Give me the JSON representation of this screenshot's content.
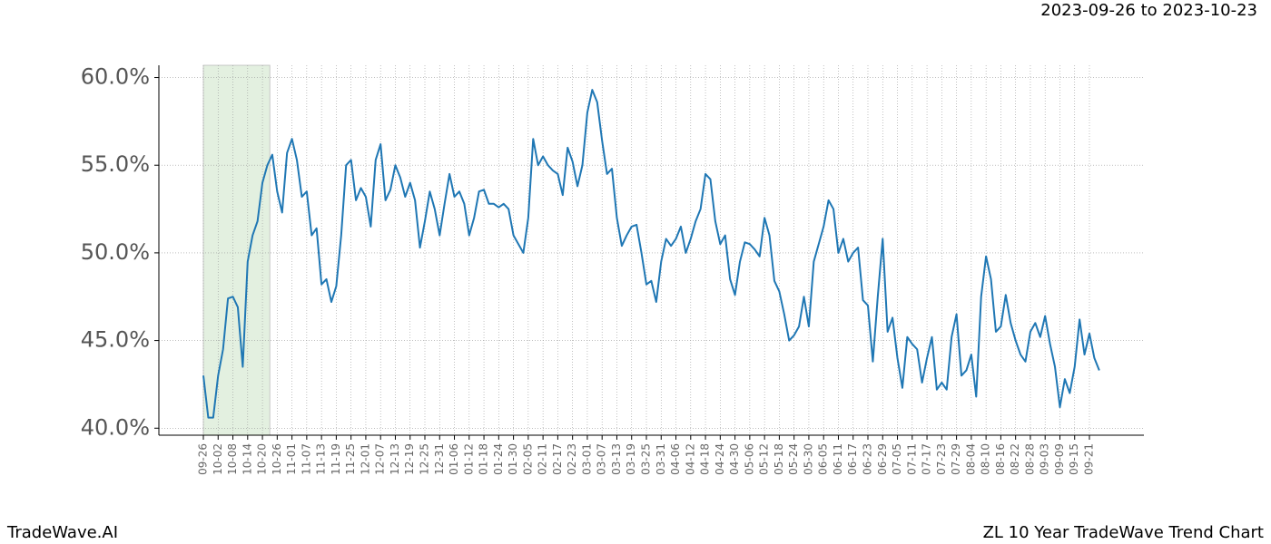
{
  "chart_data": {
    "type": "line",
    "title": "2023-09-26 to 2023-10-23",
    "footer_left": "TradeWave.AI",
    "footer_right": "ZL 10 Year TradeWave Trend Chart",
    "color": "#1f77b4",
    "grid": true,
    "highlight": {
      "from": 0,
      "to": 13.5,
      "color": "#e3f0e0"
    },
    "ylim": [
      39.6,
      60.7
    ],
    "yticks": [
      {
        "value": 40,
        "label": "40.0%"
      },
      {
        "value": 45,
        "label": "45.0%"
      },
      {
        "value": 50,
        "label": "50.0%"
      },
      {
        "value": 55,
        "label": "55.0%"
      },
      {
        "value": 60,
        "label": "60.0%"
      }
    ],
    "categories": [
      "09-26",
      null,
      null,
      "10-02",
      null,
      null,
      "10-08",
      null,
      null,
      "10-14",
      null,
      null,
      "10-20",
      null,
      null,
      "10-26",
      null,
      null,
      "11-01",
      null,
      null,
      "11-07",
      null,
      null,
      "11-13",
      null,
      null,
      "11-19",
      null,
      null,
      "11-25",
      null,
      null,
      "12-01",
      null,
      null,
      "12-07",
      null,
      null,
      "12-13",
      null,
      null,
      "12-19",
      null,
      null,
      "12-25",
      null,
      null,
      "12-31",
      null,
      null,
      "01-06",
      null,
      null,
      "01-12",
      null,
      null,
      "01-18",
      null,
      null,
      "01-24",
      null,
      null,
      "01-30",
      null,
      null,
      "02-05",
      null,
      null,
      "02-11",
      null,
      null,
      "02-17",
      null,
      null,
      "02-23",
      null,
      null,
      "03-01",
      null,
      null,
      "03-07",
      null,
      null,
      "03-13",
      null,
      null,
      "03-19",
      null,
      null,
      "03-25",
      null,
      null,
      "03-31",
      null,
      null,
      "04-06",
      null,
      null,
      "04-12",
      null,
      null,
      "04-18",
      null,
      null,
      "04-24",
      null,
      null,
      "04-30",
      null,
      null,
      "05-06",
      null,
      null,
      "05-12",
      null,
      null,
      "05-18",
      null,
      null,
      "05-24",
      null,
      null,
      "05-30",
      null,
      null,
      "06-05",
      null,
      null,
      "06-11",
      null,
      null,
      "06-17",
      null,
      null,
      "06-23",
      null,
      null,
      "06-29",
      null,
      null,
      "07-05",
      null,
      null,
      "07-11",
      null,
      null,
      "07-17",
      null,
      null,
      "07-23",
      null,
      null,
      "07-29",
      null,
      null,
      "08-04",
      null,
      null,
      "08-10",
      null,
      null,
      "08-16",
      null,
      null,
      "08-22",
      null,
      null,
      "08-28",
      null,
      null,
      "09-03",
      null,
      null,
      "09-09",
      null,
      null,
      "09-15",
      null,
      null,
      "09-21",
      null,
      null
    ],
    "values": [
      43.0,
      40.6,
      40.6,
      43.0,
      44.5,
      47.4,
      47.5,
      46.9,
      43.5,
      49.5,
      51.0,
      51.8,
      54.0,
      55.0,
      55.6,
      53.5,
      52.3,
      55.7,
      56.5,
      55.3,
      53.2,
      53.5,
      51.0,
      51.4,
      48.2,
      48.5,
      47.2,
      48.1,
      51.0,
      55.0,
      55.3,
      53.0,
      53.7,
      53.2,
      51.5,
      55.3,
      56.2,
      53.0,
      53.6,
      55.0,
      54.3,
      53.2,
      54.0,
      53.0,
      50.3,
      51.8,
      53.5,
      52.5,
      51.0,
      52.8,
      54.5,
      53.2,
      53.5,
      52.8,
      51.0,
      52.0,
      53.5,
      53.6,
      52.8,
      52.8,
      52.6,
      52.8,
      52.5,
      51.0,
      50.5,
      50.0,
      52.0,
      56.5,
      55.0,
      55.5,
      55.0,
      54.7,
      54.5,
      53.3,
      56.0,
      55.2,
      53.8,
      55.0,
      58.0,
      59.3,
      58.6,
      56.4,
      54.5,
      54.8,
      52.0,
      50.4,
      51.0,
      51.5,
      51.6,
      50.0,
      48.2,
      48.4,
      47.2,
      49.5,
      50.8,
      50.4,
      50.8,
      51.5,
      50.0,
      50.8,
      51.8,
      52.5,
      54.5,
      54.2,
      51.8,
      50.5,
      51.0,
      48.5,
      47.6,
      49.5,
      50.6,
      50.5,
      50.2,
      49.8,
      52.0,
      51.0,
      48.4,
      47.8,
      46.5,
      45.0,
      45.3,
      45.8,
      47.5,
      45.8,
      49.5,
      50.5,
      51.5,
      53.0,
      52.5,
      50.0,
      50.8,
      49.5,
      50.0,
      50.3,
      47.3,
      47.0,
      43.8,
      47.5,
      50.8,
      45.5,
      46.3,
      44.0,
      42.3,
      45.2,
      44.8,
      44.5,
      42.6,
      44.0,
      45.2,
      42.2,
      42.6,
      42.2,
      45.2,
      46.5,
      43.0,
      43.3,
      44.2,
      41.8,
      47.5,
      49.8,
      48.5,
      45.5,
      45.8,
      47.6,
      46.0,
      45.0,
      44.2,
      43.8,
      45.5,
      46.0,
      45.2,
      46.4,
      44.8,
      43.5,
      41.2,
      42.8,
      42.0,
      43.5,
      46.2,
      44.2,
      45.4,
      44.0,
      43.3
    ]
  }
}
